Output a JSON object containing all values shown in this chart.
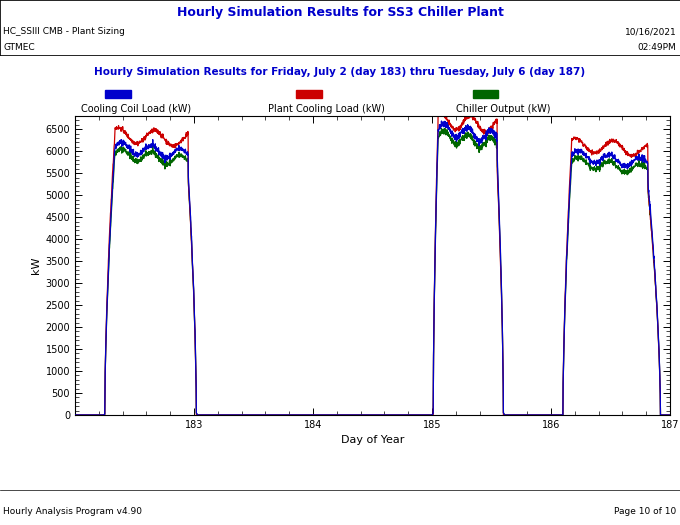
{
  "title_main": "Hourly Simulation Results for SS3 Chiller Plant",
  "title_main_color": "#0000CC",
  "left_header_line1": "HC_SSIII CMB - Plant Sizing",
  "left_header_line2": "GTMEC",
  "right_header_line1": "10/16/2021",
  "right_header_line2": "02:49PM",
  "subtitle": "Hourly Simulation Results for Friday, July 2 (day 183) thru Tuesday, July 6 (day 187)",
  "subtitle_color": "#0000CC",
  "xlabel": "Day of Year",
  "ylabel": "kW",
  "footer_left": "Hourly Analysis Program v4.90",
  "footer_right": "Page 10 of 10",
  "legend_items": [
    {
      "label": "Cooling Coil Load (kW)",
      "color": "#0000CC"
    },
    {
      "label": "Plant Cooling Load (kW)",
      "color": "#CC0000"
    },
    {
      "label": "Chiller Output (kW)",
      "color": "#006600"
    }
  ],
  "xlim": [
    182.0,
    187.0
  ],
  "ylim": [
    0,
    6800
  ],
  "ytick_vals": [
    0,
    500,
    1000,
    1500,
    2000,
    2500,
    3000,
    3500,
    4000,
    4500,
    5000,
    5500,
    6000,
    6500
  ],
  "xtick_vals": [
    183,
    184,
    185,
    186,
    187
  ],
  "background_color": "#ffffff",
  "line_color_blue": "#0000CC",
  "line_color_red": "#CC0000",
  "line_color_green": "#006600"
}
